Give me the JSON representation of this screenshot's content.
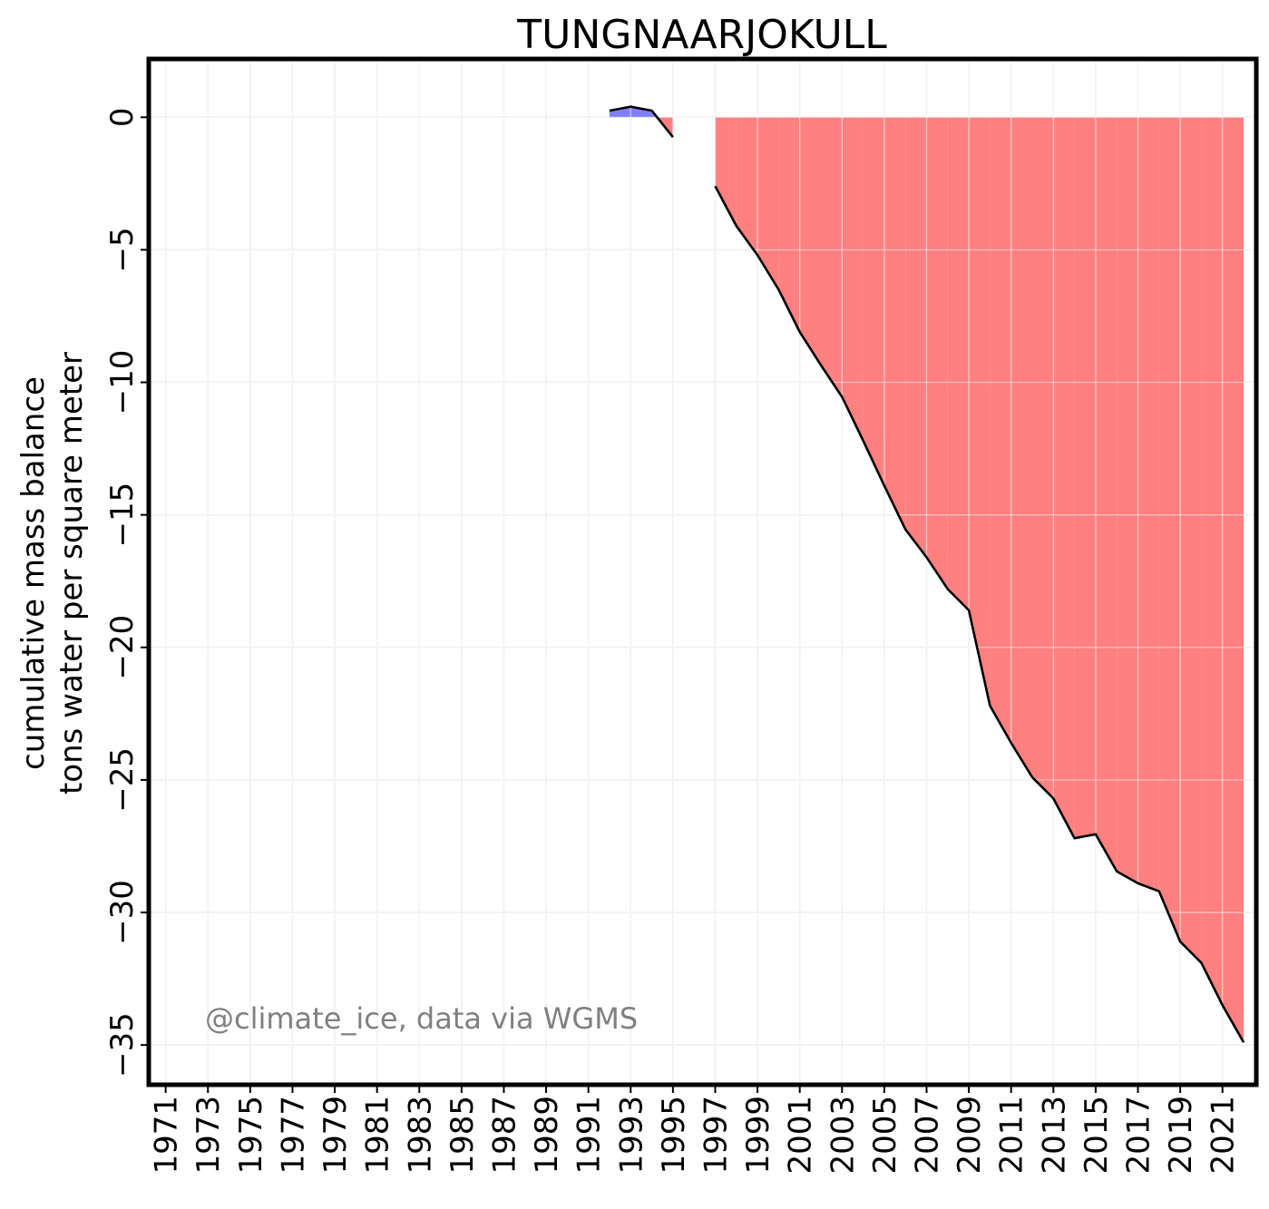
{
  "chart_data": {
    "type": "area",
    "title": "TUNGNAARJOKULL",
    "ylabel_line1": "cumulative mass balance",
    "ylabel_line2": "tons water per square meter",
    "xlabel": "",
    "watermark": "@climate_ice, data via WGMS",
    "xlim": [
      1970.2,
      2022.6
    ],
    "ylim": [
      -36.5,
      2.2
    ],
    "x_ticks": [
      1971,
      1973,
      1975,
      1977,
      1979,
      1981,
      1983,
      1985,
      1987,
      1989,
      1991,
      1993,
      1995,
      1997,
      1999,
      2001,
      2003,
      2005,
      2007,
      2009,
      2011,
      2013,
      2015,
      2017,
      2019,
      2021
    ],
    "x_tick_labels": [
      "1971",
      "1973",
      "1975",
      "1977",
      "1979",
      "1981",
      "1983",
      "1985",
      "1987",
      "1989",
      "1991",
      "1993",
      "1995",
      "1997",
      "1999",
      "2001",
      "2003",
      "2005",
      "2007",
      "2009",
      "2011",
      "2013",
      "2015",
      "2017",
      "2019",
      "2021"
    ],
    "y_ticks": [
      0,
      -5,
      -10,
      -15,
      -20,
      -25,
      -30,
      -35
    ],
    "y_tick_labels": [
      "0",
      "−5",
      "−10",
      "−15",
      "−20",
      "−25",
      "−30",
      "−35"
    ],
    "grid": true,
    "positive_color": "#8080ff",
    "negative_color": "#ff8080",
    "line_color": "#000000",
    "segments": [
      {
        "x": [
          1992,
          1993,
          1994,
          1995
        ],
        "y": [
          0.25,
          0.4,
          0.25,
          -0.75
        ]
      },
      {
        "x": [
          1997,
          1998,
          1999,
          2000,
          2001,
          2002,
          2003,
          2004,
          2005,
          2006,
          2007,
          2008,
          2009,
          2010,
          2011,
          2012,
          2013,
          2014,
          2015,
          2016,
          2017,
          2018,
          2019,
          2020,
          2021,
          2022
        ],
        "y": [
          -2.6,
          -4.1,
          -5.2,
          -6.5,
          -8.1,
          -9.35,
          -10.55,
          -12.2,
          -13.9,
          -15.55,
          -16.6,
          -17.8,
          -18.6,
          -22.2,
          -23.6,
          -24.9,
          -25.7,
          -27.2,
          -27.05,
          -28.45,
          -28.9,
          -29.2,
          -31.1,
          -31.9,
          -33.5,
          -34.9
        ]
      }
    ]
  }
}
